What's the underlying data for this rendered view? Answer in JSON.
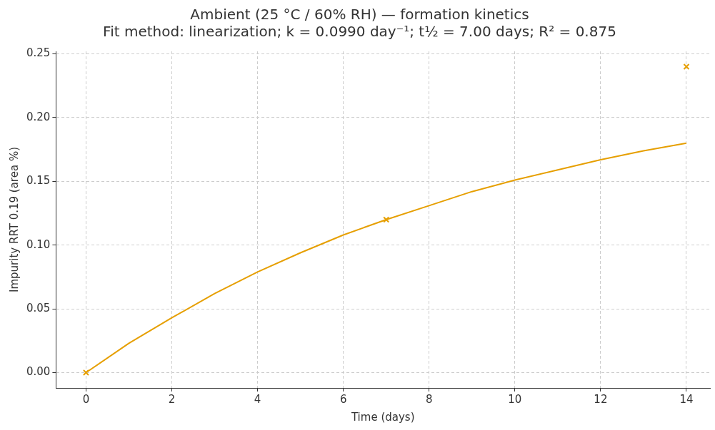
{
  "chart_data": {
    "type": "scatter",
    "title": "Ambient (25 °C / 60% RH) — formation kinetics",
    "subtitle": "Fit method: linearization; k = 0.0990 day⁻¹; t½ = 7.00 days; R² = 0.875",
    "xlabel": "Time (days)",
    "ylabel": "Impurity RRT 0.19 (area %)",
    "xlim": [
      -0.7,
      14.55
    ],
    "xticks": [
      0,
      2,
      4,
      6,
      8,
      10,
      12,
      14
    ],
    "ylim": [
      -0.012,
      0.252
    ],
    "yticks": [
      {
        "value": 0,
        "label": "0.00"
      },
      0.05,
      {
        "value": 0.1,
        "label": "0.10"
      },
      0.15,
      {
        "value": 0.2,
        "label": "0.20"
      },
      0.25
    ],
    "grid": true,
    "legend": false,
    "series": [
      {
        "type": "line",
        "marker": "none",
        "line_style": "solid",
        "color": "#e69f00",
        "x": [
          0,
          1,
          2,
          3,
          4,
          5,
          6,
          7,
          8,
          9,
          10,
          11,
          12,
          13,
          14
        ],
        "values": [
          0,
          0.023,
          0.043,
          0.062,
          0.079,
          0.094,
          0.108,
          0.12,
          0.131,
          0.142,
          0.151,
          0.159,
          0.167,
          0.174,
          0.18
        ]
      },
      {
        "marker": "cross",
        "color": "#e69f00",
        "x": [
          0,
          7,
          14
        ],
        "values": [
          0,
          0.12,
          0.24
        ]
      }
    ]
  }
}
